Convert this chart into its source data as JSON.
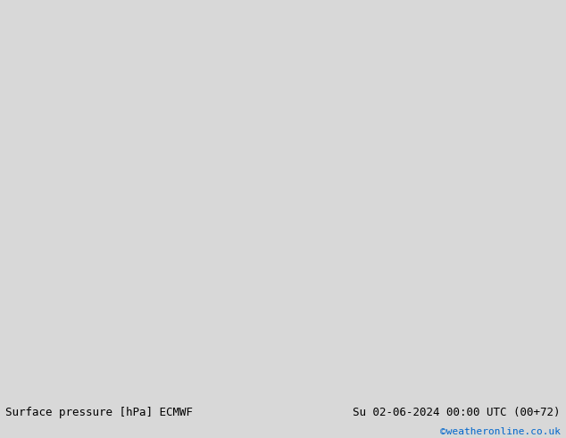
{
  "title_left": "Surface pressure [hPa] ECMWF",
  "title_right": "Su 02-06-2024 00:00 UTC (00+72)",
  "copyright": "©weatheronline.co.uk",
  "bg_color": "#d8d8d8",
  "land_color": "#90c860",
  "sea_color": "#d8d8d8",
  "fig_width": 6.34,
  "fig_height": 4.9,
  "dpi": 100,
  "bottom_bar_color": "#f0f0f0",
  "bottom_bar_height": 0.08
}
